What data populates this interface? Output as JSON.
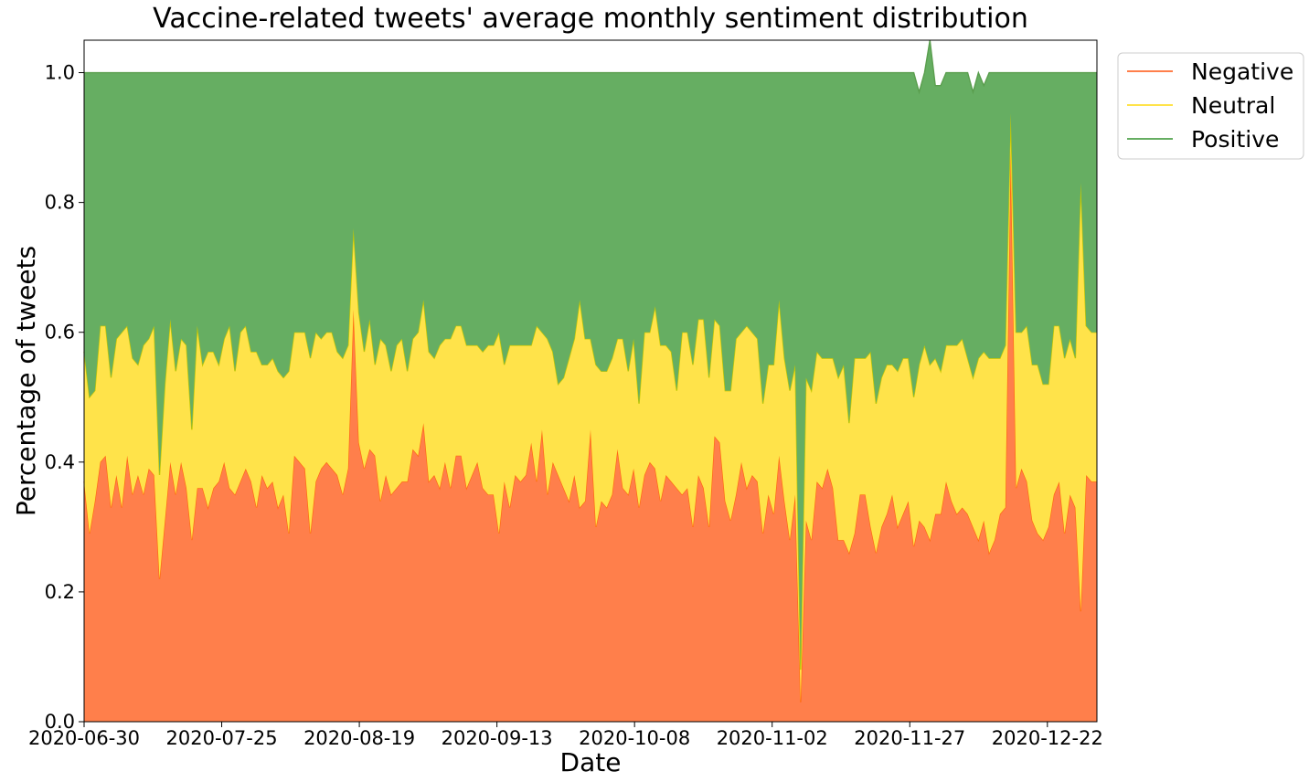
{
  "chart_data": {
    "type": "area",
    "stacked": true,
    "title": "Vaccine-related tweets' average monthly sentiment distribution",
    "xlabel": "Date",
    "ylabel": "Percentage of tweets",
    "x_start": "2020-06-30",
    "x_end": "2020-12-31",
    "x_ticks": [
      "2020-06-30",
      "2020-07-25",
      "2020-08-19",
      "2020-09-13",
      "2020-10-08",
      "2020-11-02",
      "2020-11-27",
      "2020-12-22"
    ],
    "ylim": [
      0,
      1.05
    ],
    "y_ticks": [
      "0.0",
      "0.2",
      "0.4",
      "0.6",
      "0.8",
      "1.0"
    ],
    "grid": false,
    "legend_position": "outside-top-right",
    "series": [
      {
        "name": "Negative",
        "fill": "#ff7f4b",
        "line": "#ff6a12",
        "values": [
          0.37,
          0.29,
          0.34,
          0.4,
          0.41,
          0.33,
          0.38,
          0.33,
          0.41,
          0.35,
          0.38,
          0.35,
          0.39,
          0.38,
          0.22,
          0.31,
          0.4,
          0.35,
          0.4,
          0.36,
          0.28,
          0.36,
          0.36,
          0.33,
          0.36,
          0.37,
          0.4,
          0.36,
          0.35,
          0.37,
          0.39,
          0.37,
          0.33,
          0.38,
          0.36,
          0.37,
          0.33,
          0.35,
          0.29,
          0.41,
          0.4,
          0.39,
          0.29,
          0.37,
          0.39,
          0.4,
          0.39,
          0.38,
          0.35,
          0.39,
          0.635,
          0.43,
          0.39,
          0.42,
          0.41,
          0.34,
          0.38,
          0.35,
          0.36,
          0.37,
          0.37,
          0.42,
          0.41,
          0.46,
          0.37,
          0.38,
          0.36,
          0.4,
          0.36,
          0.41,
          0.41,
          0.36,
          0.38,
          0.4,
          0.36,
          0.35,
          0.35,
          0.29,
          0.37,
          0.33,
          0.38,
          0.37,
          0.38,
          0.43,
          0.37,
          0.45,
          0.35,
          0.4,
          0.38,
          0.36,
          0.34,
          0.38,
          0.33,
          0.34,
          0.45,
          0.3,
          0.34,
          0.33,
          0.35,
          0.42,
          0.36,
          0.35,
          0.39,
          0.33,
          0.38,
          0.4,
          0.39,
          0.34,
          0.38,
          0.37,
          0.36,
          0.35,
          0.36,
          0.3,
          0.38,
          0.36,
          0.3,
          0.44,
          0.43,
          0.34,
          0.31,
          0.35,
          0.4,
          0.36,
          0.38,
          0.37,
          0.29,
          0.35,
          0.32,
          0.41,
          0.34,
          0.28,
          0.35,
          0.03,
          0.31,
          0.28,
          0.37,
          0.36,
          0.39,
          0.36,
          0.28,
          0.28,
          0.26,
          0.29,
          0.35,
          0.35,
          0.3,
          0.26,
          0.3,
          0.32,
          0.35,
          0.3,
          0.32,
          0.34,
          0.27,
          0.31,
          0.3,
          0.28,
          0.32,
          0.32,
          0.37,
          0.34,
          0.32,
          0.33,
          0.32,
          0.3,
          0.28,
          0.31,
          0.26,
          0.28,
          0.32,
          0.33,
          0.88,
          0.36,
          0.39,
          0.37,
          0.31,
          0.29,
          0.28,
          0.3,
          0.35,
          0.37,
          0.29,
          0.35,
          0.33,
          0.17,
          0.38,
          0.37,
          0.37
        ]
      },
      {
        "name": "Neutral",
        "fill": "#ffe34a",
        "line": "#c8c800",
        "values": [
          0.2,
          0.21,
          0.17,
          0.21,
          0.2,
          0.2,
          0.21,
          0.27,
          0.2,
          0.21,
          0.17,
          0.23,
          0.2,
          0.23,
          0.16,
          0.21,
          0.22,
          0.19,
          0.19,
          0.22,
          0.17,
          0.25,
          0.19,
          0.24,
          0.21,
          0.18,
          0.19,
          0.25,
          0.19,
          0.23,
          0.22,
          0.2,
          0.24,
          0.17,
          0.19,
          0.19,
          0.21,
          0.18,
          0.25,
          0.19,
          0.2,
          0.21,
          0.27,
          0.23,
          0.2,
          0.2,
          0.21,
          0.19,
          0.21,
          0.19,
          0.125,
          0.2,
          0.18,
          0.2,
          0.14,
          0.25,
          0.2,
          0.19,
          0.22,
          0.22,
          0.17,
          0.17,
          0.19,
          0.19,
          0.2,
          0.18,
          0.22,
          0.19,
          0.23,
          0.2,
          0.2,
          0.22,
          0.2,
          0.18,
          0.21,
          0.23,
          0.23,
          0.31,
          0.18,
          0.25,
          0.2,
          0.21,
          0.2,
          0.15,
          0.24,
          0.15,
          0.24,
          0.17,
          0.14,
          0.17,
          0.22,
          0.21,
          0.32,
          0.25,
          0.14,
          0.25,
          0.2,
          0.21,
          0.21,
          0.17,
          0.23,
          0.19,
          0.2,
          0.16,
          0.22,
          0.2,
          0.25,
          0.24,
          0.2,
          0.2,
          0.15,
          0.25,
          0.24,
          0.25,
          0.24,
          0.26,
          0.23,
          0.18,
          0.18,
          0.17,
          0.2,
          0.24,
          0.2,
          0.25,
          0.22,
          0.22,
          0.2,
          0.2,
          0.23,
          0.24,
          0.22,
          0.23,
          0.2,
          0.05,
          0.22,
          0.23,
          0.2,
          0.2,
          0.17,
          0.2,
          0.25,
          0.27,
          0.2,
          0.27,
          0.21,
          0.21,
          0.27,
          0.23,
          0.23,
          0.23,
          0.2,
          0.24,
          0.24,
          0.22,
          0.23,
          0.24,
          0.28,
          0.27,
          0.24,
          0.22,
          0.21,
          0.24,
          0.26,
          0.26,
          0.24,
          0.23,
          0.28,
          0.26,
          0.3,
          0.28,
          0.24,
          0.25,
          0.057,
          0.24,
          0.21,
          0.24,
          0.24,
          0.26,
          0.24,
          0.22,
          0.26,
          0.24,
          0.27,
          0.24,
          0.23,
          0.66,
          0.23,
          0.23,
          0.23
        ]
      },
      {
        "name": "Positive",
        "fill": "#66ae62",
        "line": "#5a9e4e",
        "values": [
          0.43,
          0.5,
          0.49,
          0.39,
          0.39,
          0.47,
          0.41,
          0.4,
          0.39,
          0.44,
          0.45,
          0.42,
          0.41,
          0.39,
          0.62,
          0.48,
          0.38,
          0.46,
          0.41,
          0.42,
          0.55,
          0.39,
          0.45,
          0.43,
          0.43,
          0.45,
          0.41,
          0.39,
          0.46,
          0.4,
          0.39,
          0.43,
          0.43,
          0.45,
          0.45,
          0.44,
          0.46,
          0.47,
          0.46,
          0.4,
          0.4,
          0.4,
          0.44,
          0.4,
          0.41,
          0.4,
          0.4,
          0.43,
          0.44,
          0.42,
          0.24,
          0.37,
          0.43,
          0.38,
          0.45,
          0.41,
          0.42,
          0.46,
          0.42,
          0.41,
          0.46,
          0.41,
          0.4,
          0.35,
          0.43,
          0.44,
          0.42,
          0.41,
          0.41,
          0.39,
          0.39,
          0.42,
          0.42,
          0.42,
          0.43,
          0.42,
          0.42,
          0.4,
          0.45,
          0.42,
          0.42,
          0.42,
          0.42,
          0.42,
          0.39,
          0.4,
          0.41,
          0.43,
          0.48,
          0.47,
          0.44,
          0.41,
          0.35,
          0.41,
          0.41,
          0.45,
          0.46,
          0.46,
          0.44,
          0.41,
          0.41,
          0.46,
          0.41,
          0.51,
          0.4,
          0.4,
          0.36,
          0.42,
          0.42,
          0.43,
          0.49,
          0.4,
          0.4,
          0.45,
          0.38,
          0.38,
          0.47,
          0.38,
          0.39,
          0.49,
          0.49,
          0.41,
          0.4,
          0.39,
          0.4,
          0.41,
          0.51,
          0.45,
          0.45,
          0.35,
          0.44,
          0.49,
          0.45,
          0.92,
          0.47,
          0.49,
          0.43,
          0.44,
          0.44,
          0.44,
          0.47,
          0.45,
          0.54,
          0.44,
          0.44,
          0.44,
          0.43,
          0.51,
          0.47,
          0.45,
          0.45,
          0.46,
          0.44,
          0.44,
          0.5,
          0.42,
          0.42,
          0.5,
          0.42,
          0.44,
          0.42,
          0.42,
          0.42,
          0.41,
          0.44,
          0.44,
          0.44,
          0.41,
          0.44,
          0.44,
          0.44,
          0.42,
          0.063,
          0.4,
          0.4,
          0.39,
          0.45,
          0.45,
          0.48,
          0.48,
          0.39,
          0.39,
          0.44,
          0.41,
          0.44,
          0.17,
          0.39,
          0.4,
          0.4
        ]
      }
    ]
  }
}
